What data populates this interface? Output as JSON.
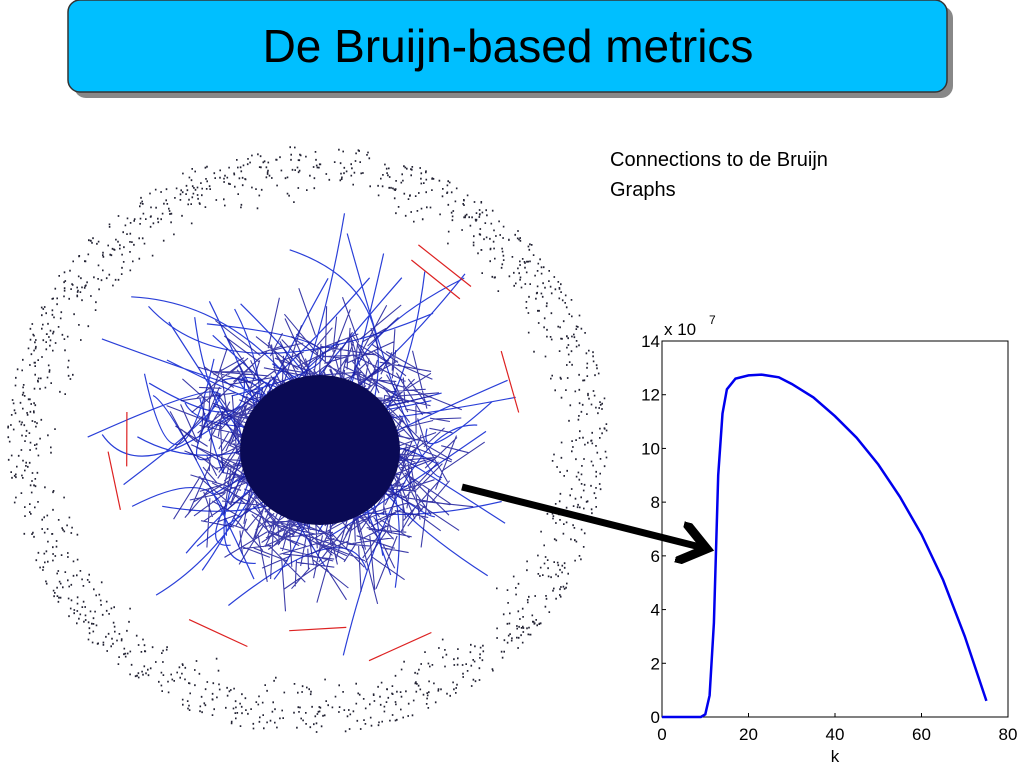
{
  "slide": {
    "title": "De Bruijn-based metrics",
    "caption_lines": [
      "Connections to de Bruijn",
      "Graphs"
    ]
  },
  "chart_data": {
    "type": "line",
    "x_label": "k",
    "y_multiplier": {
      "base": "x 10",
      "exponent": "7"
    },
    "x": [
      0,
      5,
      9,
      10,
      11,
      12,
      13,
      14,
      15,
      17,
      20,
      23,
      27,
      30,
      35,
      40,
      45,
      50,
      55,
      60,
      65,
      70,
      75
    ],
    "series": [
      {
        "color": "#0000ee",
        "values": [
          0,
          0,
          0,
          0.1,
          0.8,
          3.5,
          9,
          11.3,
          12.2,
          12.6,
          12.72,
          12.75,
          12.65,
          12.4,
          11.9,
          11.2,
          10.4,
          9.4,
          8.2,
          6.8,
          5.1,
          3.0,
          0.6
        ]
      }
    ],
    "xlim": [
      0,
      80
    ],
    "ylim": [
      0,
      14
    ],
    "xticks": [
      0,
      20,
      40,
      60,
      80
    ],
    "yticks": [
      0,
      2,
      4,
      6,
      8,
      10,
      12,
      14
    ],
    "grid": false
  }
}
